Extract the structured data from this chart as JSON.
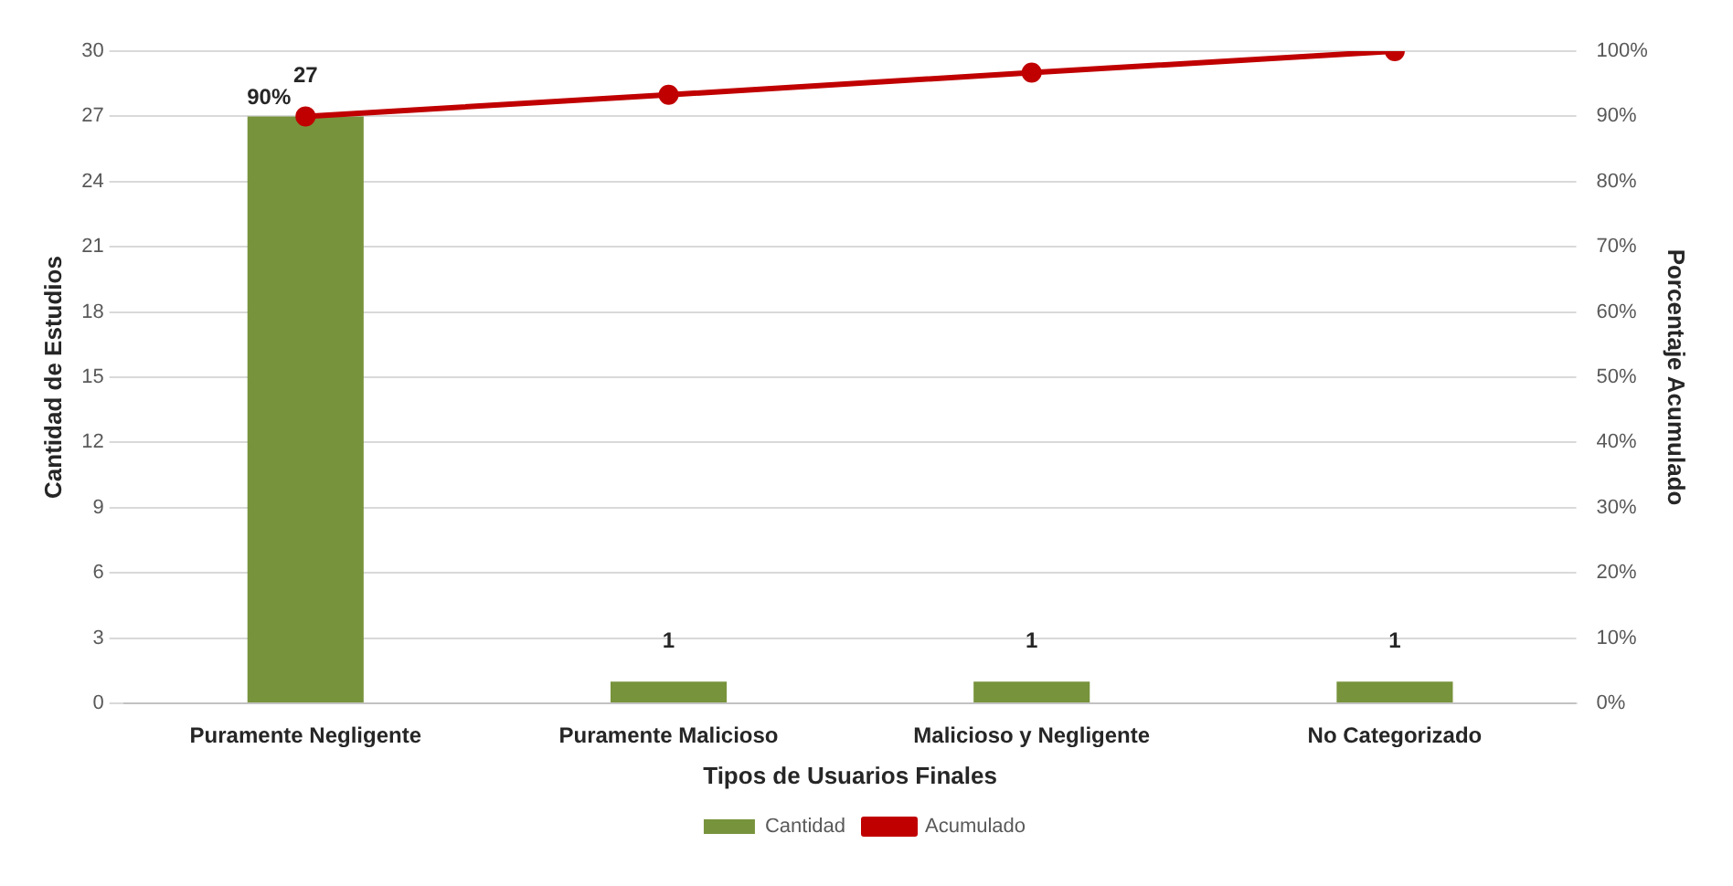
{
  "chart_data": {
    "type": "bar",
    "xlabel": "Tipos de Usuarios Finales",
    "ylabel": "Cantidad de Estudios",
    "y2label": "Porcentaje Acumulado",
    "categories": [
      "Puramente Negligente",
      "Puramente Malicioso",
      "Malicioso y Negligente",
      "No Categorizado"
    ],
    "series": [
      {
        "name": "Cantidad",
        "color": "#77933c",
        "values": [
          27,
          1,
          1,
          1
        ],
        "value_labels": [
          "27",
          "1",
          "1",
          "1"
        ]
      },
      {
        "name": "Acumulado",
        "type": "line",
        "axis": "y2",
        "color": "#c00000",
        "marker": "circle",
        "values": [
          90,
          93.3,
          96.7,
          100
        ],
        "value_labels": [
          "90%",
          null,
          null,
          null
        ]
      }
    ],
    "ylim": [
      0,
      30
    ],
    "yticks": [
      0,
      3,
      6,
      9,
      12,
      15,
      18,
      21,
      24,
      27,
      30
    ],
    "y2lim": [
      0,
      100
    ],
    "y2ticks": [
      {
        "value": 0,
        "label": "0%"
      },
      {
        "value": 10,
        "label": "10%"
      },
      {
        "value": 20,
        "label": "20%"
      },
      {
        "value": 30,
        "label": "30%"
      },
      {
        "value": 40,
        "label": "40%"
      },
      {
        "value": 50,
        "label": "50%"
      },
      {
        "value": 60,
        "label": "60%"
      },
      {
        "value": 70,
        "label": "70%"
      },
      {
        "value": 80,
        "label": "80%"
      },
      {
        "value": 90,
        "label": "90%"
      },
      {
        "value": 100,
        "label": "100%"
      }
    ],
    "grid": "y",
    "legend": "bottom"
  }
}
